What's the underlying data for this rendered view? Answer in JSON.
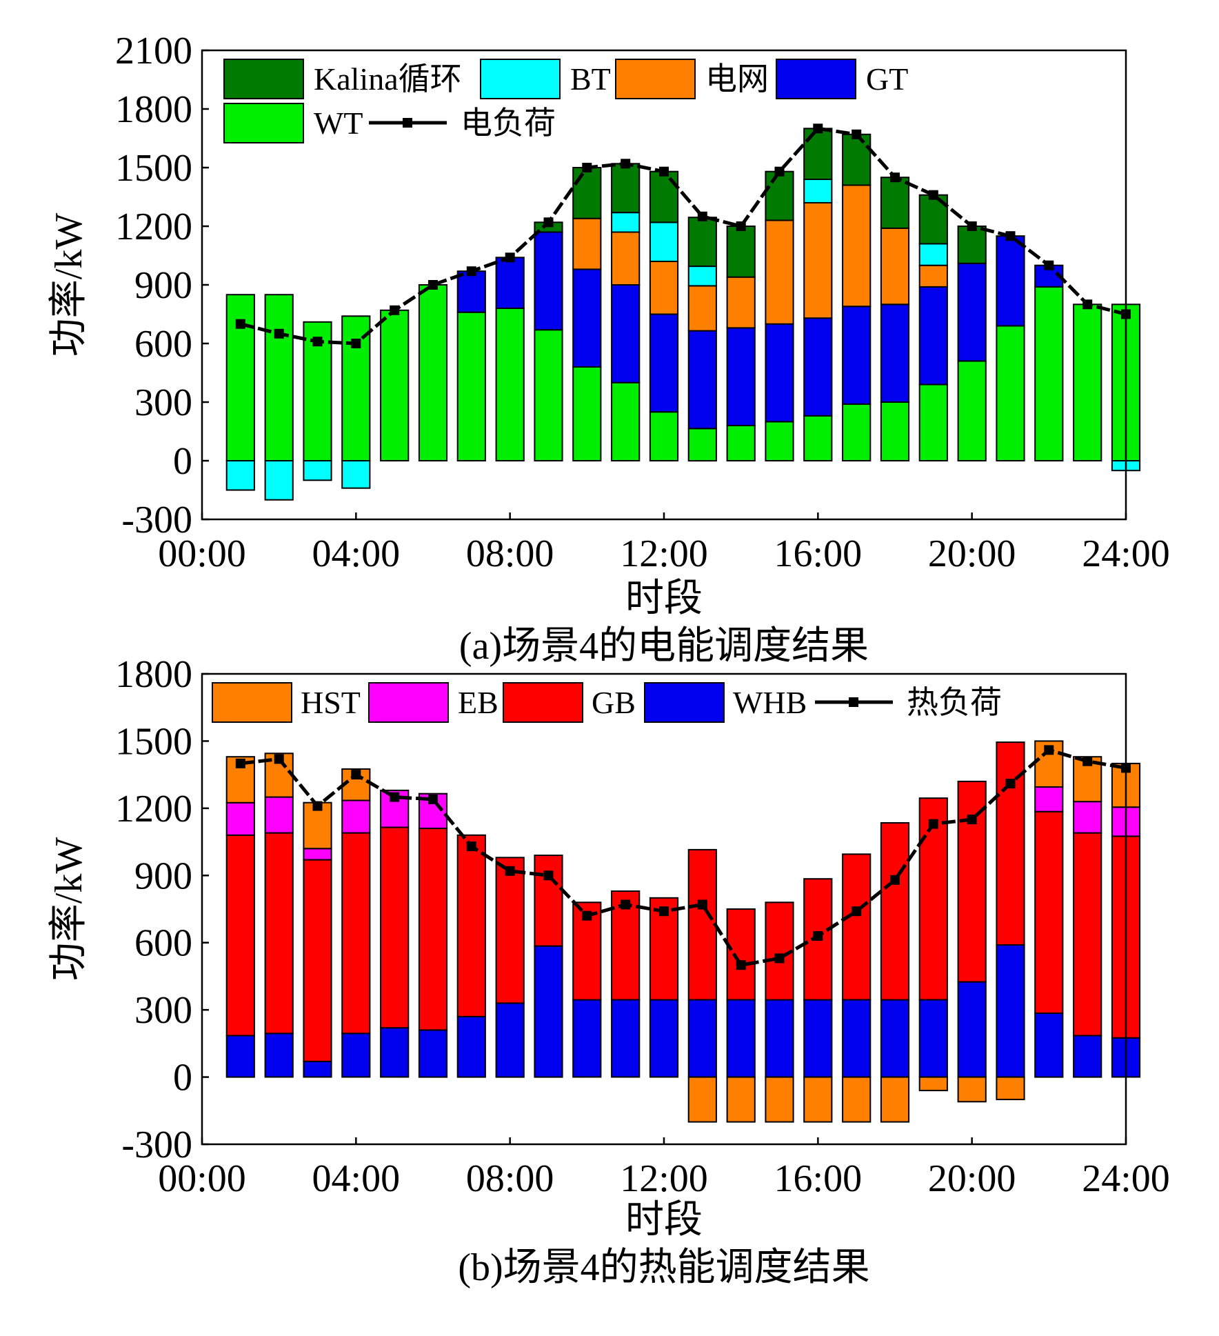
{
  "chart_data": [
    {
      "type": "bar",
      "stacked": true,
      "title": "",
      "caption": "(a)场景4的电能调度结果",
      "xlabel": "时段",
      "ylabel": "功率/kW",
      "ylim": [
        -300,
        2100
      ],
      "yticks": [
        -300,
        0,
        300,
        600,
        900,
        1200,
        1500,
        1800,
        2100
      ],
      "xlim": [
        0,
        24
      ],
      "xticks": [
        0,
        4,
        8,
        12,
        16,
        20,
        24
      ],
      "xticklabels": [
        "00:00",
        "04:00",
        "08:00",
        "12:00",
        "16:00",
        "20:00",
        "24:00"
      ],
      "categories": [
        1,
        2,
        3,
        4,
        5,
        6,
        7,
        8,
        9,
        10,
        11,
        12,
        13,
        14,
        15,
        16,
        17,
        18,
        19,
        20,
        21,
        22,
        23,
        24
      ],
      "legend_position": "top-left",
      "series": [
        {
          "name": "WT",
          "color": "#00ee00",
          "values": [
            850,
            850,
            710,
            740,
            770,
            900,
            760,
            780,
            670,
            480,
            400,
            250,
            165,
            180,
            200,
            230,
            290,
            300,
            390,
            510,
            690,
            890,
            800,
            800
          ]
        },
        {
          "name": "GT",
          "color": "#0000ee",
          "values": [
            0,
            0,
            0,
            0,
            0,
            0,
            210,
            260,
            500,
            500,
            500,
            500,
            500,
            500,
            500,
            500,
            500,
            500,
            500,
            500,
            460,
            110,
            0,
            0
          ]
        },
        {
          "name": "电网",
          "color": "#ff8000",
          "values": [
            0,
            0,
            0,
            0,
            0,
            0,
            0,
            0,
            0,
            260,
            270,
            270,
            230,
            260,
            530,
            590,
            620,
            390,
            110,
            0,
            0,
            0,
            0,
            0
          ]
        },
        {
          "name": "BT",
          "color": "#00ffff",
          "values": [
            -150,
            -200,
            -100,
            -140,
            0,
            0,
            0,
            0,
            0,
            0,
            100,
            200,
            100,
            0,
            0,
            120,
            0,
            0,
            110,
            0,
            0,
            0,
            0,
            -50
          ]
        },
        {
          "name": "Kalina循环",
          "color": "#007a00",
          "values": [
            0,
            0,
            0,
            0,
            0,
            0,
            0,
            0,
            50,
            260,
            250,
            260,
            250,
            260,
            250,
            260,
            260,
            260,
            250,
            190,
            0,
            0,
            0,
            0
          ]
        }
      ],
      "line": {
        "name": "电负荷",
        "color": "#000000",
        "values": [
          700,
          650,
          610,
          600,
          770,
          900,
          970,
          1040,
          1220,
          1500,
          1520,
          1480,
          1250,
          1200,
          1480,
          1700,
          1670,
          1450,
          1360,
          1200,
          1150,
          1000,
          800,
          750
        ]
      }
    },
    {
      "type": "bar",
      "stacked": true,
      "title": "",
      "caption": "(b)场景4的热能调度结果",
      "xlabel": "时段",
      "ylabel": "功率/kW",
      "ylim": [
        -300,
        1800
      ],
      "yticks": [
        -300,
        0,
        300,
        600,
        900,
        1200,
        1500,
        1800
      ],
      "xlim": [
        0,
        24
      ],
      "xticks": [
        0,
        4,
        8,
        12,
        16,
        20,
        24
      ],
      "xticklabels": [
        "00:00",
        "04:00",
        "08:00",
        "12:00",
        "16:00",
        "20:00",
        "24:00"
      ],
      "categories": [
        1,
        2,
        3,
        4,
        5,
        6,
        7,
        8,
        9,
        10,
        11,
        12,
        13,
        14,
        15,
        16,
        17,
        18,
        19,
        20,
        21,
        22,
        23,
        24
      ],
      "legend_position": "top",
      "series": [
        {
          "name": "WHB",
          "color": "#0000ee",
          "values": [
            185,
            195,
            70,
            195,
            220,
            210,
            270,
            330,
            585,
            345,
            345,
            345,
            345,
            345,
            345,
            345,
            345,
            345,
            345,
            425,
            590,
            285,
            185,
            175
          ]
        },
        {
          "name": "GB",
          "color": "#ff0000",
          "values": [
            895,
            895,
            900,
            895,
            895,
            900,
            810,
            650,
            405,
            435,
            485,
            455,
            670,
            405,
            435,
            540,
            650,
            790,
            900,
            895,
            905,
            900,
            905,
            900
          ]
        },
        {
          "name": "EB",
          "color": "#ff00ff",
          "values": [
            145,
            160,
            50,
            145,
            165,
            155,
            0,
            0,
            0,
            0,
            0,
            0,
            0,
            0,
            0,
            0,
            0,
            0,
            0,
            0,
            0,
            110,
            140,
            130
          ]
        },
        {
          "name": "HST",
          "color": "#ff8000",
          "values": [
            205,
            195,
            205,
            140,
            0,
            0,
            0,
            0,
            0,
            0,
            0,
            0,
            -200,
            -200,
            -200,
            -200,
            -200,
            -200,
            -60,
            -110,
            -100,
            205,
            200,
            195
          ]
        }
      ],
      "line": {
        "name": "热负荷",
        "color": "#000000",
        "values": [
          1400,
          1420,
          1210,
          1350,
          1250,
          1240,
          1030,
          920,
          900,
          720,
          770,
          740,
          770,
          500,
          530,
          630,
          740,
          880,
          1130,
          1150,
          1310,
          1460,
          1410,
          1380
        ]
      }
    }
  ]
}
